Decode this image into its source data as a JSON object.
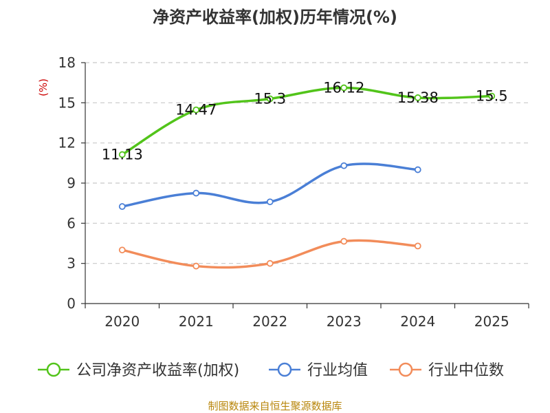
{
  "chart_data": {
    "type": "line",
    "title": "净资产收益率(加权)历年情况(%)",
    "ylabel": "(%)",
    "xlabel": "",
    "categories": [
      "2020",
      "2021",
      "2022",
      "2023",
      "2024",
      "2025"
    ],
    "ylim": [
      0,
      18
    ],
    "yticks": [
      0,
      3,
      6,
      9,
      12,
      15,
      18
    ],
    "series": [
      {
        "name": "公司净资产收益率(加权)",
        "color": "#52c41a",
        "values": [
          11.13,
          14.47,
          15.3,
          16.12,
          15.38,
          15.5
        ],
        "labels": [
          "11.13",
          "14.47",
          "15.3",
          "16.12",
          "15.38",
          "15.5"
        ],
        "show_labels": true
      },
      {
        "name": "行业均值",
        "color": "#4a7fd6",
        "values": [
          7.25,
          8.25,
          7.6,
          10.3,
          10.0,
          null
        ],
        "show_labels": false
      },
      {
        "name": "行业中位数",
        "color": "#f28c5a",
        "values": [
          4.0,
          2.8,
          3.0,
          4.65,
          4.3,
          null
        ],
        "show_labels": false
      }
    ],
    "grid": true,
    "legend": "bottom",
    "source": "制图数据来自恒生聚源数据库"
  }
}
